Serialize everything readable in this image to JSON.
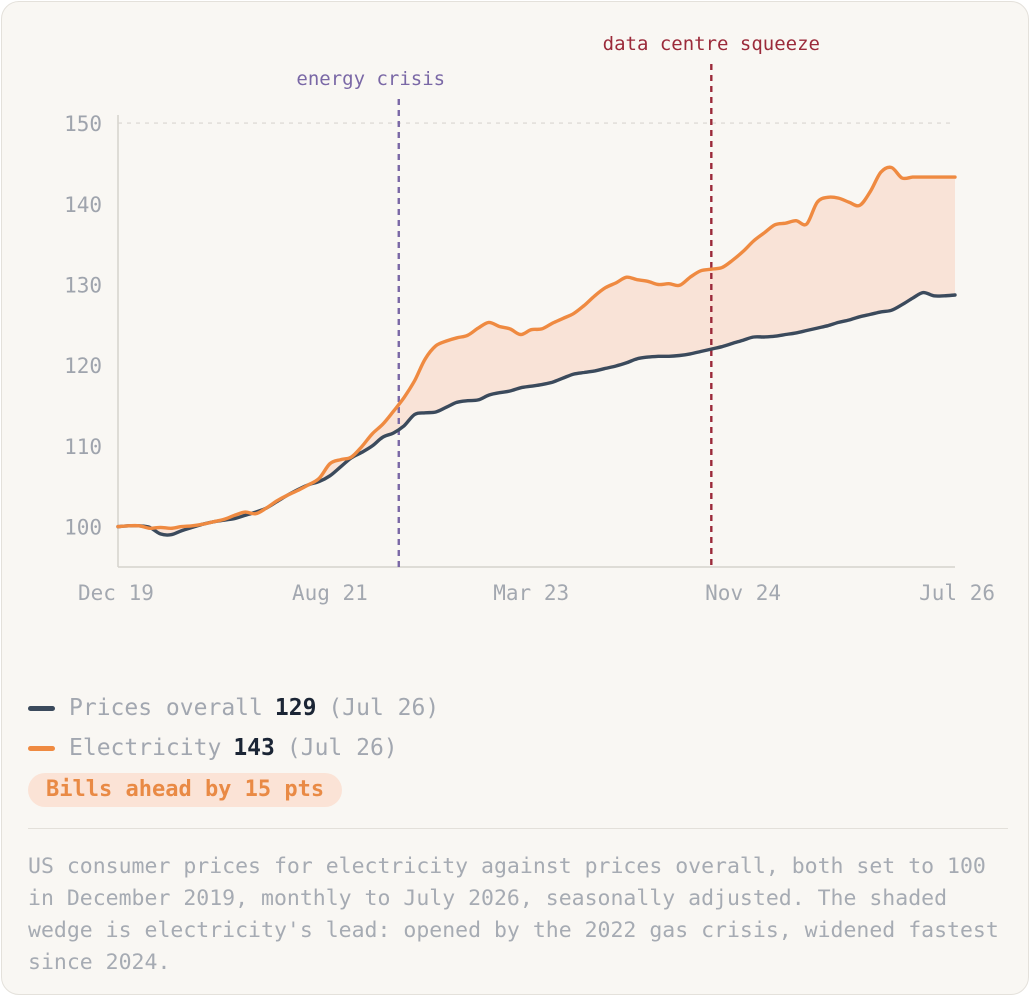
{
  "legend": {
    "overall": {
      "label": "Prices overall",
      "value": "129",
      "date": "(Jul 26)"
    },
    "electricity": {
      "label": "Electricity",
      "value": "143",
      "date": "(Jul 26)"
    }
  },
  "badge": "Bills ahead by 15 pts",
  "note": "US consumer prices for electricity against prices overall, both set to 100 in December 2019, monthly to July 2026, seasonally adjusted. The shaded wedge is electricity's lead: opened by the 2022 gas crisis, widened fastest since 2024.",
  "colors": {
    "overall": "#3b4a5c",
    "electricity": "#ef8a41",
    "wedge": "#f9e3d7",
    "annotation_crisis": "#7a68a6",
    "annotation_squeeze": "#9b2a3a"
  },
  "chart_data": {
    "type": "line",
    "title": "",
    "xlabel": "",
    "ylabel": "",
    "x_start": "Dec 19",
    "x_end": "Jul 26",
    "x_ticks": [
      {
        "label": "Dec 19",
        "index": 0
      },
      {
        "label": "Aug 21",
        "index": 20
      },
      {
        "label": "Mar 23",
        "index": 39
      },
      {
        "label": "Nov 24",
        "index": 59
      },
      {
        "label": "Jul 26",
        "index": 79
      }
    ],
    "ylim": [
      95,
      151
    ],
    "y_ticks": [
      100,
      110,
      120,
      130,
      140,
      150
    ],
    "grid": "top-line-only",
    "annotations": [
      {
        "label": "energy crisis",
        "index": 26.5,
        "color_key": "annotation_crisis"
      },
      {
        "label": "data centre squeeze",
        "index": 56,
        "color_key": "annotation_squeeze"
      }
    ],
    "series": [
      {
        "name": "Prices overall",
        "values": [
          100.0,
          100.1,
          100.1,
          99.9,
          99.1,
          99.0,
          99.5,
          99.9,
          100.3,
          100.6,
          100.8,
          101.0,
          101.4,
          101.8,
          102.3,
          103.1,
          103.9,
          104.6,
          105.2,
          105.6,
          106.3,
          107.4,
          108.5,
          109.2,
          110.0,
          111.1,
          111.6,
          112.5,
          113.9,
          114.1,
          114.2,
          114.8,
          115.4,
          115.6,
          115.7,
          116.3,
          116.6,
          116.8,
          117.2,
          117.4,
          117.6,
          117.9,
          118.4,
          118.9,
          119.1,
          119.3,
          119.6,
          119.9,
          120.3,
          120.8,
          121.0,
          121.1,
          121.1,
          121.2,
          121.4,
          121.7,
          122.0,
          122.3,
          122.7,
          123.1,
          123.5,
          123.5,
          123.6,
          123.8,
          124.0,
          124.3,
          124.6,
          124.9,
          125.3,
          125.6,
          126.0,
          126.3,
          126.6,
          126.8,
          127.5,
          128.3,
          129.0,
          128.6,
          128.6,
          128.7
        ]
      },
      {
        "name": "Electricity",
        "values": [
          100.0,
          100.1,
          100.1,
          99.8,
          99.9,
          99.8,
          100.0,
          100.1,
          100.3,
          100.6,
          100.9,
          101.4,
          101.8,
          101.6,
          102.3,
          103.2,
          103.9,
          104.5,
          105.2,
          106.0,
          107.8,
          108.3,
          108.6,
          109.9,
          111.5,
          112.7,
          114.3,
          116.0,
          118.1,
          120.8,
          122.4,
          123.0,
          123.4,
          123.7,
          124.6,
          125.3,
          124.8,
          124.5,
          123.8,
          124.4,
          124.5,
          125.2,
          125.8,
          126.4,
          127.4,
          128.6,
          129.6,
          130.2,
          130.9,
          130.6,
          130.4,
          130.0,
          130.1,
          129.9,
          130.9,
          131.7,
          131.9,
          132.1,
          133.0,
          134.1,
          135.4,
          136.4,
          137.4,
          137.6,
          137.9,
          137.5,
          140.2,
          140.8,
          140.7,
          140.2,
          139.8,
          141.5,
          143.9,
          144.5,
          143.2,
          143.3,
          143.3,
          143.3,
          143.3,
          143.3
        ]
      }
    ]
  }
}
